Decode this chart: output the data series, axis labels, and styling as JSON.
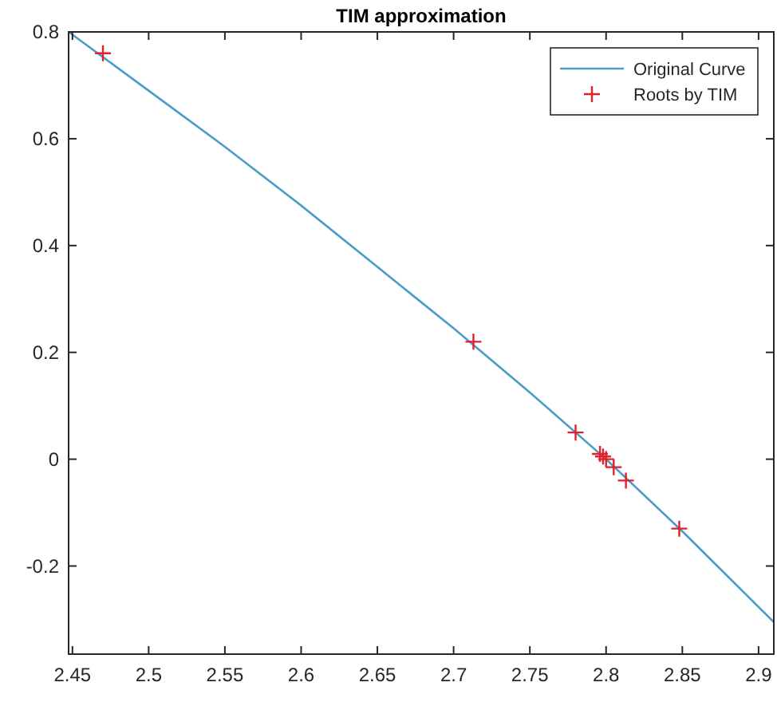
{
  "chart_data": {
    "type": "line",
    "title": "TIM approximation",
    "xlim": [
      2.4475,
      2.91
    ],
    "ylim": [
      -0.365,
      0.8
    ],
    "xticks": [
      2.45,
      2.5,
      2.55,
      2.6,
      2.65,
      2.7,
      2.75,
      2.8,
      2.85,
      2.9
    ],
    "yticks": [
      -0.2,
      0,
      0.2,
      0.4,
      0.6,
      0.8
    ],
    "grid": false,
    "legend": "top right",
    "series": [
      {
        "name": "Original Curve",
        "color": "#4a9cc7",
        "marker": "none",
        "line_style": "solid",
        "x": [
          2.4475,
          2.5,
          2.55,
          2.6,
          2.65,
          2.7,
          2.75,
          2.8,
          2.85,
          2.91
        ],
        "values": [
          0.8,
          0.69,
          0.585,
          0.475,
          0.36,
          0.245,
          0.125,
          0.0,
          -0.135,
          -0.305
        ]
      },
      {
        "name": "Roots by TIM",
        "type": "scatter",
        "color": "#e0202a",
        "marker": "cross",
        "x": [
          2.47,
          2.713,
          2.78,
          2.796,
          2.798,
          2.8,
          2.805,
          2.813,
          2.848
        ],
        "values": [
          0.76,
          0.22,
          0.05,
          0.01,
          0.005,
          0.0,
          -0.015,
          -0.04,
          -0.13
        ]
      }
    ]
  }
}
